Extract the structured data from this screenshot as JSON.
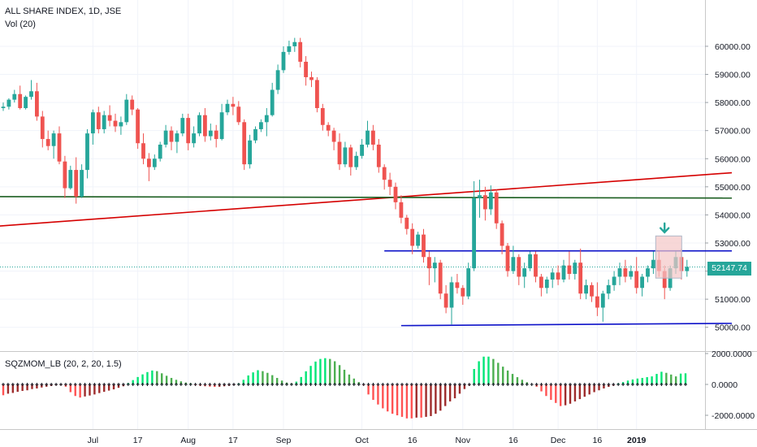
{
  "title": "ALL SHARE INDEX, 1D, JSE",
  "volume_label": "Vol (20)",
  "indicator_label": "SQZMOM_LB (20, 2, 20, 1.5)",
  "last_price_label": "52147.74",
  "colors": {
    "up": "#26a69a",
    "down": "#ef5350",
    "trend_red": "#d50000",
    "hline_green": "#1b5e20",
    "channel_blue": "#0d12c9",
    "momentum_bright_green": "#00e676",
    "momentum_dark_green": "#4caf50",
    "momentum_bright_red": "#ff5252",
    "momentum_dark_red": "#9e2b2b",
    "squeeze_dot": "#131722",
    "price_line": "#26a69a",
    "marker_box": "#f4c6c6",
    "marker_arrow": "#26a69a"
  },
  "chart_data": [
    {
      "type": "candlestick",
      "title": "ALL SHARE INDEX, 1D, JSE",
      "y_axis": {
        "ticks": [
          50000,
          51000,
          52000,
          53000,
          54000,
          55000,
          56000,
          57000,
          58000,
          59000,
          60000
        ],
        "tick_labels": [
          "50000.00",
          "51000.00",
          "52000.00",
          "53000.00",
          "54000.00",
          "55000.00",
          "56000.00",
          "57000.00",
          "58000.00",
          "59000.00",
          "60000.00"
        ],
        "ylim": [
          49500,
          61300
        ]
      },
      "x_axis": {
        "tick_labels": [
          "Jul",
          "17",
          "Aug",
          "17",
          "Sep",
          "Oct",
          "16",
          "Nov",
          "16",
          "Dec",
          "16",
          "2019"
        ],
        "tick_index": [
          16,
          24,
          33,
          41,
          50,
          64,
          73,
          82,
          91,
          99,
          106,
          113
        ]
      },
      "last_price": 52147.74,
      "candles": [
        [
          57800,
          58000,
          57700,
          57850
        ],
        [
          57850,
          58150,
          57750,
          58100
        ],
        [
          58100,
          58450,
          58000,
          58300
        ],
        [
          58300,
          58600,
          57750,
          57800
        ],
        [
          57800,
          58250,
          57750,
          58200
        ],
        [
          58200,
          58800,
          58100,
          58400
        ],
        [
          58400,
          58700,
          57350,
          57500
        ],
        [
          57500,
          57700,
          56400,
          56700
        ],
        [
          56700,
          57000,
          56300,
          56450
        ],
        [
          56450,
          57000,
          56000,
          56900
        ],
        [
          56900,
          57150,
          55800,
          55900
        ],
        [
          55900,
          56100,
          54600,
          54950
        ],
        [
          54950,
          55750,
          54900,
          55600
        ],
        [
          55600,
          56050,
          54400,
          54650
        ],
        [
          54650,
          55800,
          54600,
          55600
        ],
        [
          55600,
          57050,
          55300,
          56900
        ],
        [
          56900,
          57750,
          56500,
          57650
        ],
        [
          57650,
          57850,
          56900,
          57050
        ],
        [
          57050,
          57700,
          56900,
          57550
        ],
        [
          57550,
          57900,
          57150,
          57350
        ],
        [
          57350,
          57600,
          56950,
          57150
        ],
        [
          57150,
          57500,
          56850,
          57300
        ],
        [
          57300,
          58300,
          57200,
          58100
        ],
        [
          58100,
          58250,
          57550,
          57750
        ],
        [
          57750,
          57800,
          56350,
          56550
        ],
        [
          56550,
          56900,
          55800,
          56000
        ],
        [
          56000,
          56200,
          55200,
          55700
        ],
        [
          55700,
          56150,
          55600,
          56000
        ],
        [
          56000,
          56600,
          55900,
          56500
        ],
        [
          56500,
          57200,
          56400,
          57000
        ],
        [
          57000,
          57150,
          56300,
          56600
        ],
        [
          56600,
          57000,
          56200,
          56900
        ],
        [
          56900,
          57600,
          56800,
          57450
        ],
        [
          57450,
          57600,
          56300,
          56550
        ],
        [
          56550,
          57150,
          56400,
          56900
        ],
        [
          56900,
          57650,
          56800,
          57550
        ],
        [
          57550,
          57800,
          56600,
          56800
        ],
        [
          56800,
          57250,
          56650,
          57000
        ],
        [
          57000,
          57200,
          56400,
          56700
        ],
        [
          56700,
          57950,
          56650,
          57650
        ],
        [
          57650,
          58100,
          57550,
          57950
        ],
        [
          57950,
          58200,
          57550,
          57850
        ],
        [
          57850,
          58050,
          57200,
          57300
        ],
        [
          57300,
          57400,
          55600,
          55800
        ],
        [
          55800,
          56850,
          55650,
          56650
        ],
        [
          56650,
          57150,
          56550,
          57050
        ],
        [
          57050,
          57400,
          56950,
          57300
        ],
        [
          57300,
          57800,
          56800,
          57550
        ],
        [
          57550,
          58700,
          57500,
          58450
        ],
        [
          58450,
          59350,
          58300,
          59150
        ],
        [
          59150,
          60000,
          59050,
          59800
        ],
        [
          59800,
          60200,
          59700,
          60000
        ],
        [
          60000,
          60300,
          59800,
          60150
        ],
        [
          60150,
          60300,
          59250,
          59450
        ],
        [
          59450,
          59650,
          58600,
          58900
        ],
        [
          58900,
          59100,
          58550,
          58800
        ],
        [
          58800,
          58900,
          57650,
          57800
        ],
        [
          57800,
          57950,
          57000,
          57200
        ],
        [
          57200,
          57300,
          56800,
          57000
        ],
        [
          57000,
          57100,
          56300,
          56600
        ],
        [
          56600,
          56900,
          55600,
          55800
        ],
        [
          55800,
          56600,
          55700,
          56400
        ],
        [
          56400,
          56500,
          55400,
          55700
        ],
        [
          55700,
          56250,
          55600,
          56100
        ],
        [
          56100,
          56700,
          56000,
          56500
        ],
        [
          56500,
          57350,
          56400,
          57000
        ],
        [
          57000,
          57200,
          56300,
          56500
        ],
        [
          56500,
          56700,
          55500,
          55700
        ],
        [
          55700,
          55800,
          54900,
          55250
        ],
        [
          55250,
          55500,
          54700,
          55000
        ],
        [
          55000,
          55150,
          54200,
          54450
        ],
        [
          54450,
          54700,
          53700,
          53900
        ],
        [
          53900,
          54000,
          53300,
          53500
        ],
        [
          53500,
          53700,
          52600,
          52900
        ],
        [
          52900,
          53400,
          52800,
          53300
        ],
        [
          53300,
          53500,
          52300,
          52500
        ],
        [
          52500,
          52700,
          51500,
          52100
        ],
        [
          52100,
          52500,
          51600,
          52300
        ],
        [
          52300,
          52400,
          51000,
          51200
        ],
        [
          51200,
          51500,
          50500,
          50700
        ],
        [
          50700,
          51800,
          50100,
          51600
        ],
        [
          51600,
          51900,
          51200,
          51400
        ],
        [
          51400,
          51500,
          50800,
          51100
        ],
        [
          51100,
          52300,
          51000,
          52100
        ],
        [
          52100,
          55200,
          52000,
          54600
        ],
        [
          54600,
          55250,
          53900,
          54700
        ],
        [
          54700,
          55000,
          53800,
          54200
        ],
        [
          54200,
          55050,
          54000,
          54800
        ],
        [
          54800,
          54900,
          53500,
          53700
        ],
        [
          53700,
          53800,
          52600,
          52900
        ],
        [
          52900,
          53000,
          51800,
          52000
        ],
        [
          52000,
          52900,
          51900,
          52500
        ],
        [
          52500,
          52600,
          51500,
          51800
        ],
        [
          51800,
          52300,
          51400,
          52100
        ],
        [
          52100,
          52700,
          52000,
          52600
        ],
        [
          52600,
          52700,
          51600,
          51800
        ],
        [
          51800,
          51900,
          51100,
          51400
        ],
        [
          51400,
          51800,
          51200,
          51700
        ],
        [
          51700,
          52100,
          51400,
          51950
        ],
        [
          51950,
          52200,
          51500,
          51700
        ],
        [
          51700,
          52400,
          51600,
          52200
        ],
        [
          52200,
          52700,
          51700,
          51900
        ],
        [
          51900,
          52400,
          51700,
          52300
        ],
        [
          52300,
          52800,
          51000,
          51200
        ],
        [
          51200,
          51700,
          51000,
          51500
        ],
        [
          51500,
          51600,
          50900,
          51100
        ],
        [
          51100,
          51600,
          50400,
          50700
        ],
        [
          50700,
          51300,
          50200,
          51200
        ],
        [
          51200,
          51700,
          51000,
          51500
        ],
        [
          51500,
          52000,
          51300,
          51800
        ],
        [
          51800,
          52300,
          51500,
          52100
        ],
        [
          52100,
          52400,
          51600,
          51800
        ],
        [
          51800,
          52200,
          51700,
          52000
        ],
        [
          52000,
          52500,
          51200,
          51400
        ],
        [
          51400,
          51900,
          51100,
          51800
        ],
        [
          51800,
          52200,
          51600,
          52100
        ],
        [
          52100,
          52700,
          51900,
          52400
        ],
        [
          52400,
          52700,
          51800,
          52000
        ],
        [
          52000,
          52200,
          51000,
          51400
        ],
        [
          51400,
          52200,
          51300,
          52100
        ],
        [
          52100,
          52700,
          51900,
          52500
        ],
        [
          52500,
          52800,
          51700,
          52000
        ],
        [
          52000,
          52400,
          51800,
          52150
        ]
      ],
      "lines": [
        {
          "name": "trendline",
          "color": "trend_red",
          "from": [
            -1,
            53600
          ],
          "to": [
            130,
            55500
          ]
        },
        {
          "name": "horizontal",
          "color": "hline_green",
          "from": [
            -1,
            54650
          ],
          "to": [
            130,
            54600
          ]
        },
        {
          "name": "upper-channel",
          "color": "channel_blue",
          "from": [
            68,
            52720
          ],
          "to": [
            130,
            52720
          ]
        },
        {
          "name": "lower-channel",
          "color": "channel_blue",
          "from": [
            71,
            50060
          ],
          "to": [
            130,
            50140
          ]
        }
      ]
    },
    {
      "type": "bar",
      "title": "SQZMOM_LB (20, 2, 20, 1.5)",
      "y_axis": {
        "ticks": [
          2000,
          0,
          -2000
        ],
        "tick_labels": [
          "2000.0000",
          "0.0000",
          "-2000.0000"
        ],
        "ylim": [
          -2600,
          2400
        ]
      },
      "values": [
        -700,
        -600,
        -550,
        -480,
        -420,
        -380,
        -300,
        -260,
        -200,
        -150,
        -100,
        -50,
        -30,
        -150,
        -500,
        -750,
        -850,
        -780,
        -720,
        -650,
        -560,
        -480,
        -400,
        -320,
        -220,
        -120,
        80,
        280,
        480,
        650,
        800,
        900,
        860,
        720,
        560,
        420,
        300,
        200,
        120,
        70,
        -30,
        -90,
        -120,
        -140,
        -160,
        -150,
        -120,
        -90,
        -50,
        60,
        300,
        580,
        780,
        920,
        860,
        750,
        600,
        420,
        250,
        120,
        60,
        180,
        480,
        850,
        1200,
        1480,
        1650,
        1700,
        1650,
        1500,
        1250,
        950,
        640,
        380,
        150,
        -60,
        -650,
        -1000,
        -1300,
        -1550,
        -1750,
        -1900,
        -2000,
        -2100,
        -2200,
        -2200,
        -2150,
        -2150,
        -2100,
        -2050,
        -1900,
        -1700,
        -1400,
        -1100,
        -900,
        -600,
        -300,
        -80,
        1000,
        1500,
        1800,
        1800,
        1650,
        1400,
        1150,
        900,
        680,
        470,
        300,
        140,
        20,
        -150,
        -450,
        -750,
        -1000,
        -1200,
        -1400,
        -1350,
        -1250,
        -1100,
        -950,
        -800,
        -650,
        -500,
        -380,
        -260,
        -160,
        -80,
        60,
        150,
        250,
        320,
        380,
        420,
        470,
        520,
        680,
        820,
        750,
        640,
        520,
        700,
        720
      ]
    }
  ]
}
